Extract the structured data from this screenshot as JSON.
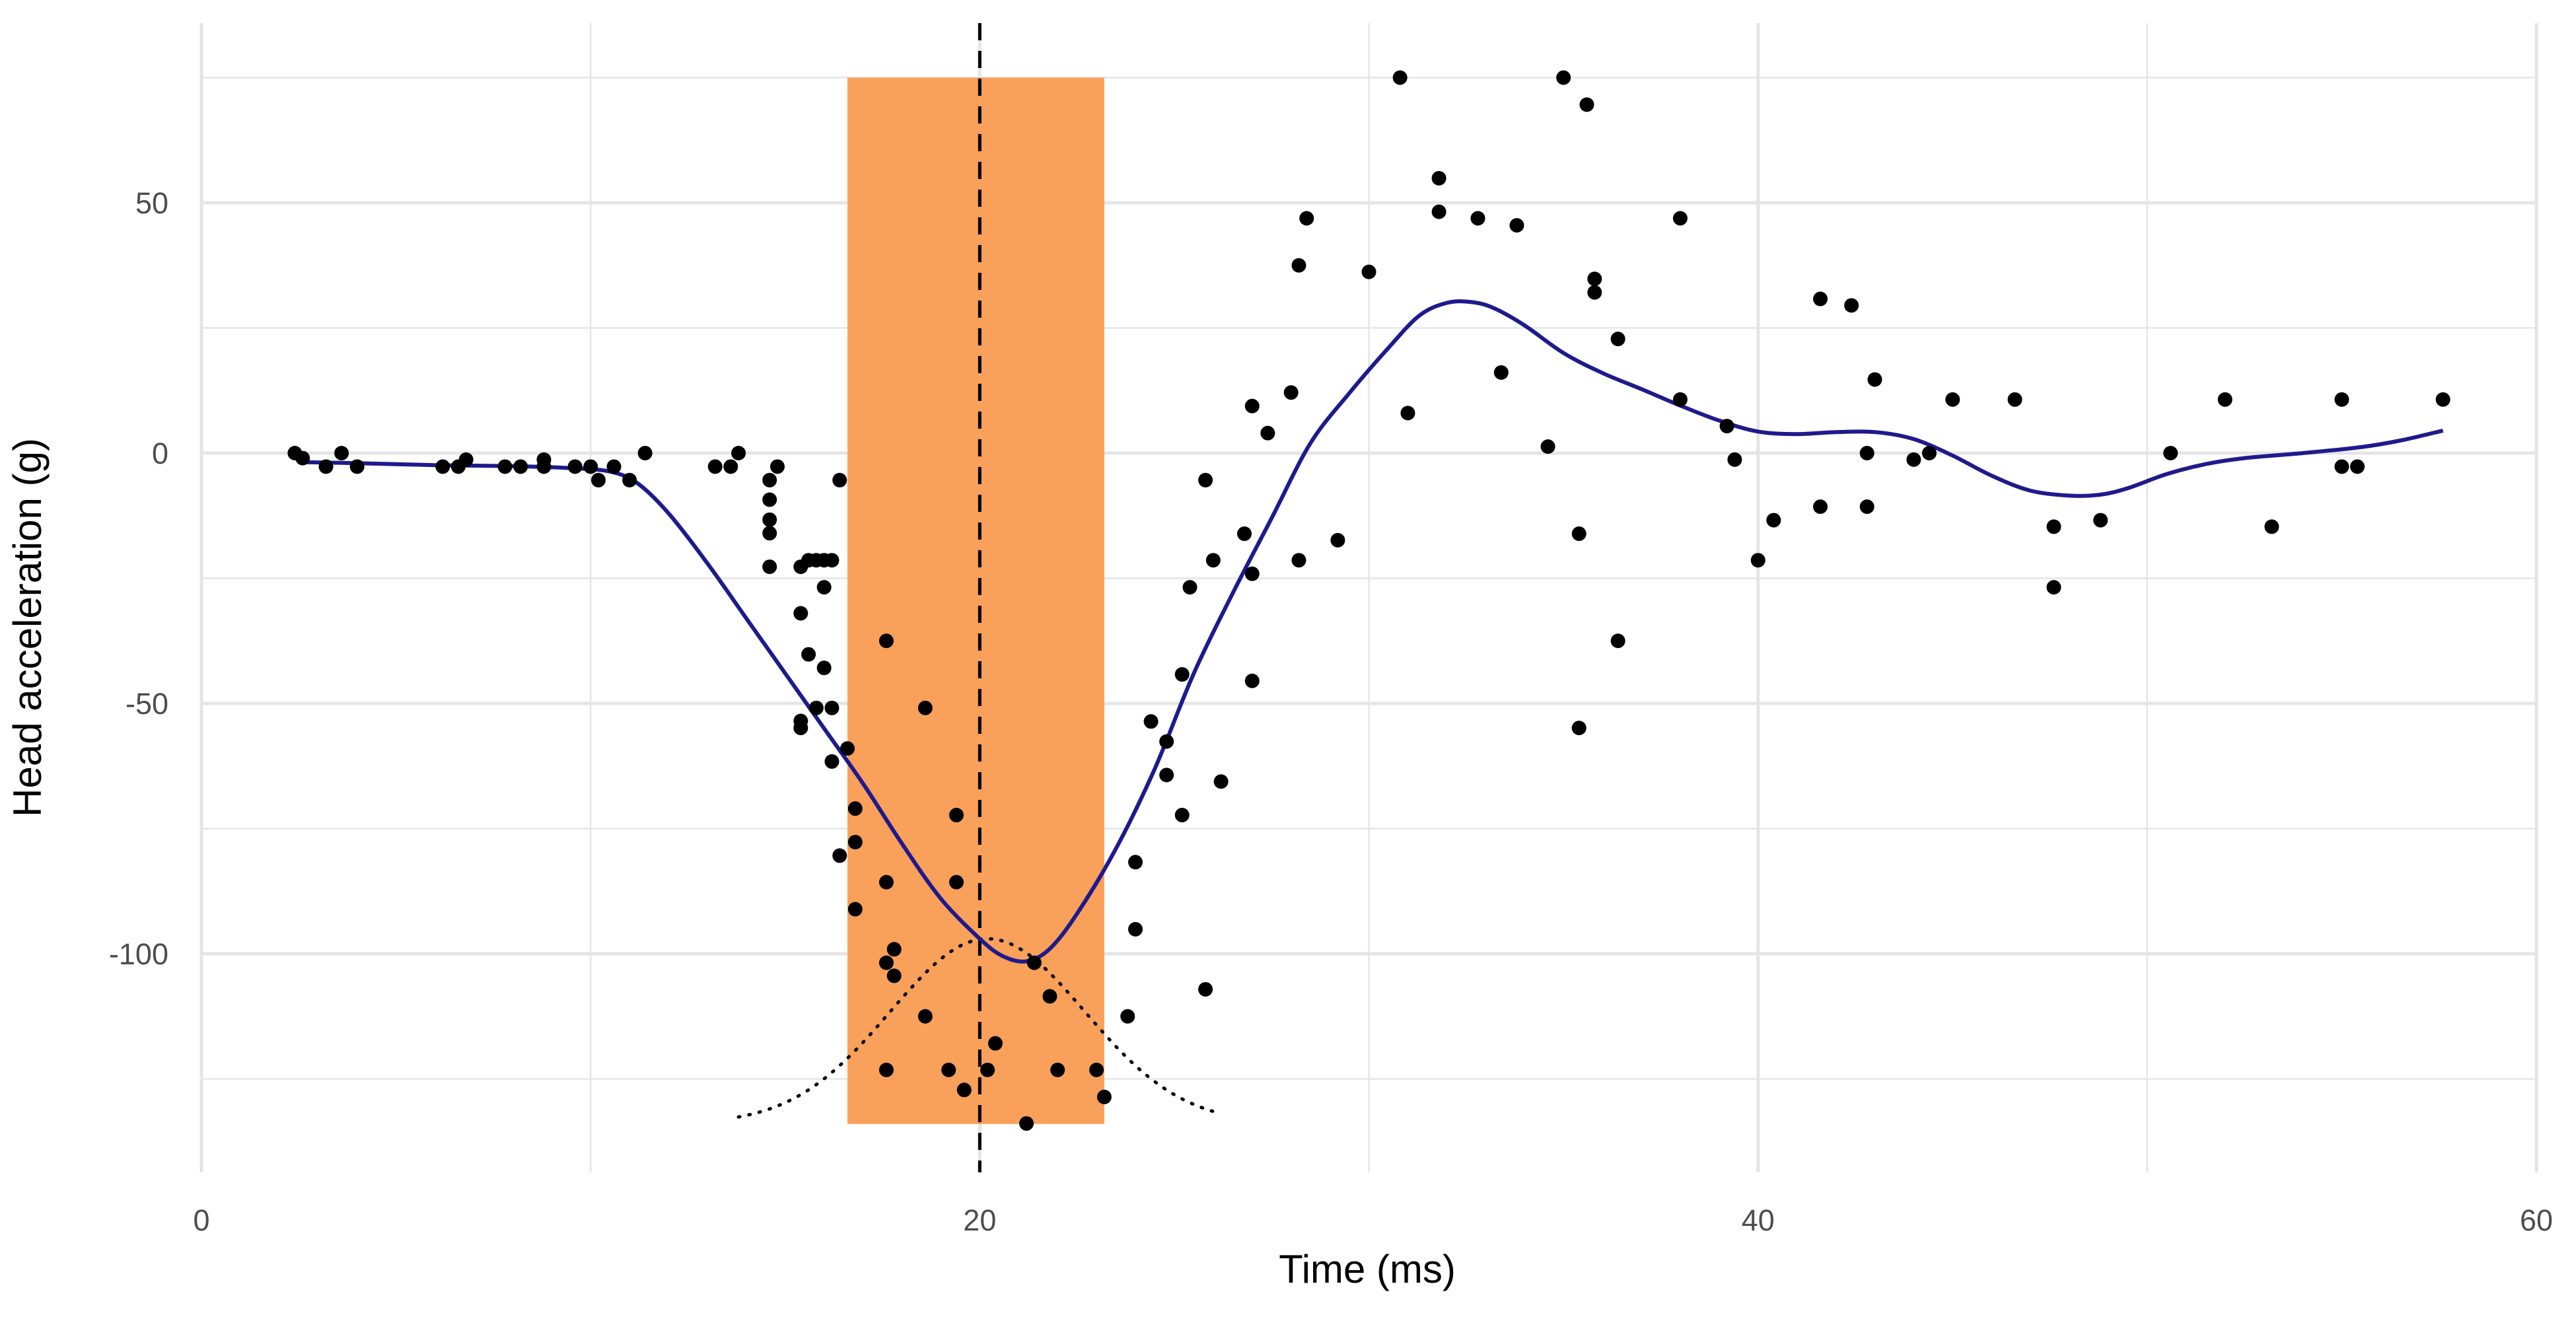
{
  "chart_data": {
    "type": "scatter",
    "title": "",
    "xlabel": "Time (ms)",
    "ylabel": "Head acceleration (g)",
    "xlim": [
      0,
      60
    ],
    "ylim": [
      -140,
      85
    ],
    "x_ticks": [
      0,
      20,
      40,
      60
    ],
    "y_ticks": [
      50,
      0,
      -50,
      -100
    ],
    "x_tick_labels": [
      "0",
      "20",
      "40",
      "60"
    ],
    "y_tick_labels": [
      "50",
      "0",
      "-50",
      "-100"
    ],
    "grid": true,
    "legend": "none",
    "colors": {
      "points": "#000000",
      "smooth_line": "#1f1a8c",
      "band": "#f9a05a",
      "grid": "#e5e5e5",
      "vline": "#000000",
      "density": "#000000"
    },
    "highlight_band": {
      "x_start": 16.6,
      "x_end": 23.2,
      "y_min": -134,
      "y_max": 75
    },
    "vertical_line": {
      "x": 20,
      "style": "dashed"
    },
    "points": [
      [
        2.4,
        0
      ],
      [
        2.6,
        -1
      ],
      [
        3.2,
        -2.7
      ],
      [
        3.6,
        0
      ],
      [
        4.0,
        -2.7
      ],
      [
        6.2,
        -2.7
      ],
      [
        6.6,
        -2.7
      ],
      [
        6.8,
        -1.3
      ],
      [
        7.8,
        -2.7
      ],
      [
        8.2,
        -2.7
      ],
      [
        8.8,
        -1.3
      ],
      [
        8.8,
        -2.7
      ],
      [
        9.6,
        -2.7
      ],
      [
        10.0,
        -2.7
      ],
      [
        10.2,
        -5.4
      ],
      [
        10.6,
        -2.7
      ],
      [
        11.0,
        -5.4
      ],
      [
        11.4,
        0
      ],
      [
        13.2,
        -2.7
      ],
      [
        13.6,
        -2.7
      ],
      [
        13.8,
        0
      ],
      [
        14.6,
        -5.4
      ],
      [
        14.6,
        -9.3
      ],
      [
        14.6,
        -13.3
      ],
      [
        14.6,
        -16.0
      ],
      [
        14.6,
        -22.7
      ],
      [
        14.8,
        -2.7
      ],
      [
        15.4,
        -22.7
      ],
      [
        15.4,
        -32.0
      ],
      [
        15.4,
        -53.5
      ],
      [
        15.4,
        -54.9
      ],
      [
        15.6,
        -21.4
      ],
      [
        15.6,
        -40.2
      ],
      [
        15.8,
        -21.4
      ],
      [
        15.8,
        -50.9
      ],
      [
        16.0,
        -21.4
      ],
      [
        16.0,
        -26.8
      ],
      [
        16.0,
        -42.9
      ],
      [
        16.2,
        -21.4
      ],
      [
        16.2,
        -50.9
      ],
      [
        16.2,
        -61.6
      ],
      [
        16.4,
        -5.4
      ],
      [
        16.4,
        -80.4
      ],
      [
        16.6,
        -59.0
      ],
      [
        16.8,
        -71.0
      ],
      [
        16.8,
        -77.7
      ],
      [
        16.8,
        -91.1
      ],
      [
        17.6,
        -37.5
      ],
      [
        17.6,
        -85.7
      ],
      [
        17.6,
        -101.8
      ],
      [
        17.6,
        -123.2
      ],
      [
        17.8,
        -99.1
      ],
      [
        17.8,
        -104.4
      ],
      [
        18.6,
        -50.9
      ],
      [
        18.6,
        -112.5
      ],
      [
        19.2,
        -123.2
      ],
      [
        19.4,
        -72.3
      ],
      [
        19.4,
        -85.7
      ],
      [
        19.6,
        -127.2
      ],
      [
        20.2,
        -123.2
      ],
      [
        20.4,
        -117.9
      ],
      [
        21.2,
        -133.9
      ],
      [
        21.4,
        -101.8
      ],
      [
        21.8,
        -108.5
      ],
      [
        22.0,
        -123.2
      ],
      [
        23.0,
        -123.2
      ],
      [
        23.2,
        -128.6
      ],
      [
        23.8,
        -112.5
      ],
      [
        24.0,
        -95.1
      ],
      [
        24.0,
        -81.7
      ],
      [
        24.4,
        -53.6
      ],
      [
        24.8,
        -57.6
      ],
      [
        24.8,
        -64.3
      ],
      [
        25.2,
        -72.3
      ],
      [
        25.2,
        -44.2
      ],
      [
        25.4,
        -26.8
      ],
      [
        25.8,
        -5.4
      ],
      [
        25.8,
        -107.1
      ],
      [
        26.0,
        -21.4
      ],
      [
        26.2,
        -65.6
      ],
      [
        26.8,
        -16.1
      ],
      [
        27.0,
        -24.1
      ],
      [
        27.0,
        -45.5
      ],
      [
        27.0,
        9.4
      ],
      [
        27.4,
        4.0
      ],
      [
        28.0,
        12.1
      ],
      [
        28.2,
        37.5
      ],
      [
        28.2,
        -21.4
      ],
      [
        28.4,
        46.9
      ],
      [
        29.2,
        -17.4
      ],
      [
        30.0,
        36.2
      ],
      [
        30.8,
        75.0
      ],
      [
        31.0,
        8.0
      ],
      [
        31.8,
        48.2
      ],
      [
        31.8,
        54.9
      ],
      [
        32.8,
        46.9
      ],
      [
        33.4,
        16.1
      ],
      [
        33.8,
        45.5
      ],
      [
        34.6,
        1.3
      ],
      [
        35.0,
        75.0
      ],
      [
        35.4,
        -16.1
      ],
      [
        35.4,
        -54.9
      ],
      [
        35.6,
        69.6
      ],
      [
        35.8,
        34.8
      ],
      [
        35.8,
        32.1
      ],
      [
        36.4,
        22.8
      ],
      [
        36.4,
        -37.5
      ],
      [
        38.0,
        46.9
      ],
      [
        38.0,
        10.7
      ],
      [
        39.2,
        5.4
      ],
      [
        39.4,
        -1.3
      ],
      [
        40.0,
        -21.4
      ],
      [
        40.4,
        -13.4
      ],
      [
        41.6,
        -10.7
      ],
      [
        41.6,
        30.8
      ],
      [
        42.4,
        29.5
      ],
      [
        42.8,
        0
      ],
      [
        42.8,
        -10.7
      ],
      [
        43.0,
        14.7
      ],
      [
        44.0,
        -1.3
      ],
      [
        44.4,
        0
      ],
      [
        45.0,
        10.7
      ],
      [
        46.6,
        10.7
      ],
      [
        47.6,
        -14.7
      ],
      [
        47.6,
        -26.8
      ],
      [
        48.8,
        -13.4
      ],
      [
        50.6,
        0
      ],
      [
        52.0,
        10.7
      ],
      [
        53.2,
        -14.7
      ],
      [
        55.0,
        10.7
      ],
      [
        55.0,
        -2.7
      ],
      [
        55.4,
        -2.7
      ],
      [
        57.6,
        10.7
      ]
    ],
    "smooth_line": [
      [
        2.5,
        -1.8
      ],
      [
        4,
        -2.0
      ],
      [
        6,
        -2.4
      ],
      [
        8,
        -2.6
      ],
      [
        9.5,
        -3.0
      ],
      [
        10.5,
        -3.7
      ],
      [
        11.2,
        -6.0
      ],
      [
        12,
        -12.0
      ],
      [
        13,
        -22.0
      ],
      [
        14,
        -33.0
      ],
      [
        15,
        -44.0
      ],
      [
        16,
        -55.0
      ],
      [
        17,
        -66.0
      ],
      [
        18,
        -78.0
      ],
      [
        19,
        -89.0
      ],
      [
        20,
        -97.0
      ],
      [
        20.6,
        -100.5
      ],
      [
        21.2,
        -101.5
      ],
      [
        21.8,
        -99.0
      ],
      [
        22.5,
        -92.0
      ],
      [
        23.5,
        -79.0
      ],
      [
        24.5,
        -63.0
      ],
      [
        25.5,
        -44.0
      ],
      [
        26.5,
        -28.0
      ],
      [
        27.5,
        -13.0
      ],
      [
        28.5,
        2.0
      ],
      [
        29.5,
        12.0
      ],
      [
        30.5,
        21.0
      ],
      [
        31.3,
        27.5
      ],
      [
        32,
        30.0
      ],
      [
        32.6,
        30.2
      ],
      [
        33.2,
        29.0
      ],
      [
        34,
        25.5
      ],
      [
        35,
        20.0
      ],
      [
        36,
        16.0
      ],
      [
        37,
        12.8
      ],
      [
        38,
        9.5
      ],
      [
        39,
        6.5
      ],
      [
        40,
        4.3
      ],
      [
        41,
        3.8
      ],
      [
        42,
        4.2
      ],
      [
        43,
        4.2
      ],
      [
        44,
        2.8
      ],
      [
        45,
        -0.5
      ],
      [
        46,
        -4.5
      ],
      [
        47,
        -7.5
      ],
      [
        48,
        -8.5
      ],
      [
        48.8,
        -8.3
      ],
      [
        49.5,
        -7.0
      ],
      [
        50.5,
        -4.2
      ],
      [
        51.5,
        -2.2
      ],
      [
        52.5,
        -1.0
      ],
      [
        54,
        0
      ],
      [
        55.5,
        1.2
      ],
      [
        56.5,
        2.5
      ],
      [
        57.6,
        4.5
      ]
    ],
    "density_curve": {
      "center": 20.2,
      "sigma": 2.5,
      "x_start": 13.8,
      "x_end": 26.2,
      "baseline": -134,
      "peak": -97
    }
  }
}
